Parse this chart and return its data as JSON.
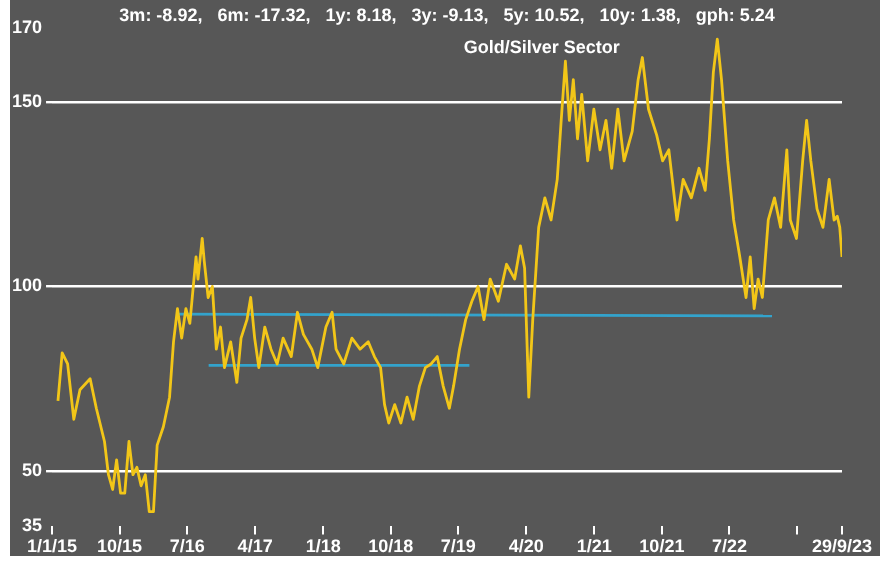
{
  "chart_data": {
    "type": "line",
    "title": "Gold/Silver Sector",
    "annotations": [
      "3m: -8.92,   6m: -17.32,   1y: 8.18,   3y: -9.13,   5y: 10.52,   10y: 1.38,   gph: 5.24"
    ],
    "series": [
      {
        "color": "#f2c618",
        "x": [
          "2015-01-25",
          "2015-02-11",
          "2015-03-05",
          "2015-03-30",
          "2015-04-24",
          "2015-06-04",
          "2015-06-29",
          "2015-08-01",
          "2015-08-17",
          "2015-09-03",
          "2015-09-19",
          "2015-10-05",
          "2015-10-22",
          "2015-11-08",
          "2015-11-24",
          "2015-12-10",
          "2015-12-27",
          "2016-01-13",
          "2016-01-29",
          "2016-02-15",
          "2016-03-01",
          "2016-03-26",
          "2016-04-20",
          "2016-05-06",
          "2016-05-22",
          "2016-06-08",
          "2016-06-25",
          "2016-07-11",
          "2016-08-05",
          "2016-08-13",
          "2016-08-30",
          "2016-09-07",
          "2016-09-23",
          "2016-10-10",
          "2016-10-26",
          "2016-11-12",
          "2016-11-28",
          "2016-12-23",
          "2017-01-17",
          "2017-02-03",
          "2017-02-27",
          "2017-03-14",
          "2017-03-30",
          "2017-04-16",
          "2017-05-10",
          "2017-06-04",
          "2017-06-29",
          "2017-07-23",
          "2017-08-25",
          "2017-09-19",
          "2017-10-13",
          "2017-11-16",
          "2017-12-10",
          "2018-01-12",
          "2018-02-06",
          "2018-02-22",
          "2018-03-25",
          "2018-04-27",
          "2018-05-30",
          "2018-07-02",
          "2018-07-27",
          "2018-08-21",
          "2018-09-06",
          "2018-09-23",
          "2018-10-17",
          "2018-11-11",
          "2018-12-06",
          "2018-12-31",
          "2019-01-25",
          "2019-02-18",
          "2019-03-13",
          "2019-04-07",
          "2019-05-01",
          "2019-05-26",
          "2019-06-12",
          "2019-07-06",
          "2019-07-31",
          "2019-08-25",
          "2019-09-19",
          "2019-10-13",
          "2019-11-07",
          "2019-12-10",
          "2020-01-12",
          "2020-02-14",
          "2020-03-08",
          "2020-03-25",
          "2020-04-11",
          "2020-04-27",
          "2020-05-21",
          "2020-06-15",
          "2020-07-10",
          "2020-08-04",
          "2020-08-20",
          "2020-09-06",
          "2020-09-22",
          "2020-10-08",
          "2020-10-25",
          "2020-11-11",
          "2020-12-05",
          "2020-12-30",
          "2021-01-24",
          "2021-02-17",
          "2021-03-12",
          "2021-04-06",
          "2021-05-01",
          "2021-06-03",
          "2021-06-27",
          "2021-07-14",
          "2021-08-08",
          "2021-09-10",
          "2021-10-04",
          "2021-10-29",
          "2021-12-01",
          "2021-12-26",
          "2022-01-28",
          "2022-02-28",
          "2022-03-25",
          "2022-04-11",
          "2022-04-27",
          "2022-05-13",
          "2022-05-30",
          "2022-06-24",
          "2022-07-18",
          "2022-08-12",
          "2022-09-06",
          "2022-09-23",
          "2022-10-09",
          "2022-10-25",
          "2022-11-11",
          "2022-12-05",
          "2022-12-30",
          "2023-01-24",
          "2023-02-18",
          "2023-03-04",
          "2023-03-29",
          "2023-04-23",
          "2023-05-09",
          "2023-05-26",
          "2023-06-20",
          "2023-07-14",
          "2023-08-08",
          "2023-08-28",
          "2023-09-10",
          "2023-09-20",
          "2023-09-29"
        ],
        "values": [
          69,
          82,
          79,
          64,
          72,
          75,
          67,
          58,
          49,
          45,
          53,
          44,
          44,
          58,
          49,
          51,
          46,
          49,
          39,
          39,
          57,
          62,
          70,
          85,
          94,
          86,
          94,
          90,
          108,
          102,
          113,
          107,
          97,
          100,
          83,
          89,
          78,
          85,
          74,
          86,
          91,
          97,
          86,
          78,
          89,
          83,
          79,
          86,
          81,
          93,
          87,
          83,
          78,
          89,
          93,
          83,
          79,
          86,
          83,
          85,
          81,
          78,
          68,
          63,
          68,
          63,
          70,
          64,
          73,
          78,
          79,
          81,
          73,
          67,
          73,
          83,
          91,
          96,
          100,
          91,
          102,
          96,
          106,
          102,
          111,
          105,
          70,
          91,
          116,
          124,
          118,
          129,
          145,
          161,
          145,
          156,
          140,
          152,
          134,
          148,
          137,
          145,
          132,
          148,
          134,
          142,
          156,
          162,
          148,
          141,
          134,
          137,
          118,
          129,
          124,
          132,
          126,
          140,
          158,
          167,
          156,
          134,
          118,
          108,
          97,
          108,
          94,
          102,
          97,
          118,
          124,
          116,
          137,
          118,
          113,
          134,
          145,
          134,
          121,
          116,
          129,
          118,
          119,
          116,
          108
        ]
      },
      {
        "color": "#33a3cc",
        "x": [
          "2016-05-20",
          "2022-12-20"
        ],
        "values": [
          92.5,
          92
        ]
      },
      {
        "color": "#33a3cc",
        "x": [
          "2016-09-25",
          "2019-08-15"
        ],
        "values": [
          78.6,
          78.6
        ]
      }
    ],
    "xlim": [
      "2015-01-01",
      "2023-09-29"
    ],
    "xticks": [
      {
        "value": "2015-01-01",
        "label": "1/1/15"
      },
      {
        "value": "2015-10-01",
        "label": "10/15"
      },
      {
        "value": "2016-07-01",
        "label": "7/16"
      },
      {
        "value": "2017-04-01",
        "label": "4/17"
      },
      {
        "value": "2018-01-01",
        "label": "1/18"
      },
      {
        "value": "2018-10-01",
        "label": "10/18"
      },
      {
        "value": "2019-07-01",
        "label": "7/19"
      },
      {
        "value": "2020-04-01",
        "label": "4/20"
      },
      {
        "value": "2021-01-01",
        "label": "1/21"
      },
      {
        "value": "2021-10-01",
        "label": "10/21"
      },
      {
        "value": "2022-07-01",
        "label": "7/22"
      },
      {
        "value": "2023-04-01",
        "label": null
      },
      {
        "value": "2023-09-29",
        "label": "29/9/23"
      }
    ],
    "ylim": [
      35,
      170
    ],
    "yticks": [
      35,
      50,
      100,
      150,
      170
    ],
    "grid": "y",
    "legend": false,
    "marker": "none",
    "line_style": "solid"
  }
}
